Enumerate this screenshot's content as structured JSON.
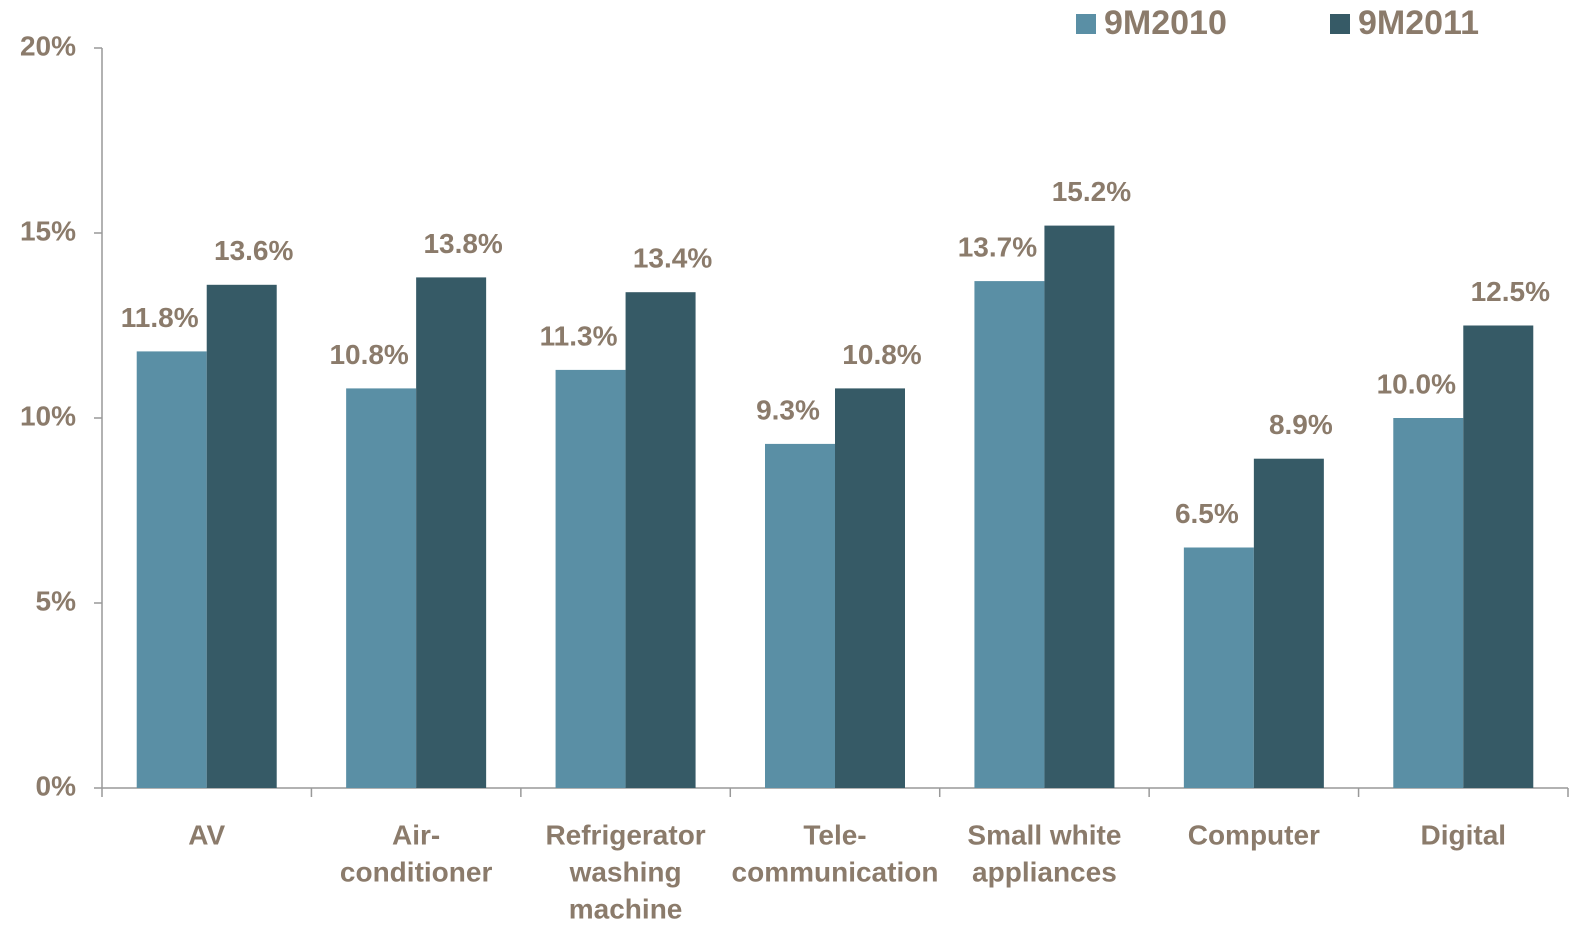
{
  "chart_data": {
    "type": "bar",
    "categories": [
      [
        "AV"
      ],
      [
        "Air-",
        "conditioner"
      ],
      [
        "Refrigerator",
        "washing",
        "machine"
      ],
      [
        "Tele-",
        "communication"
      ],
      [
        "Small white",
        "appliances"
      ],
      [
        "Computer"
      ],
      [
        "Digital"
      ]
    ],
    "series": [
      {
        "name": "9M2010",
        "color": "#5a8fa5",
        "values": [
          11.8,
          10.8,
          11.3,
          9.3,
          13.7,
          6.5,
          10.0
        ],
        "value_labels": [
          "11.8%",
          "10.8%",
          "11.3%",
          "9.3%",
          "13.7%",
          "6.5%",
          "10.0%"
        ]
      },
      {
        "name": "9M2011",
        "color": "#365a66",
        "values": [
          13.6,
          13.8,
          13.4,
          10.8,
          15.2,
          8.9,
          12.5
        ],
        "value_labels": [
          "13.6%",
          "13.8%",
          "13.4%",
          "10.8%",
          "15.2%",
          "8.9%",
          "12.5%"
        ]
      }
    ],
    "ylim": [
      0,
      20
    ],
    "yticks": [
      {
        "value": 0,
        "label": "0%"
      },
      {
        "value": 5,
        "label": "5%"
      },
      {
        "value": 10,
        "label": "10%"
      },
      {
        "value": 15,
        "label": "15%"
      },
      {
        "value": 20,
        "label": "20%"
      }
    ],
    "legend": "top-right"
  }
}
